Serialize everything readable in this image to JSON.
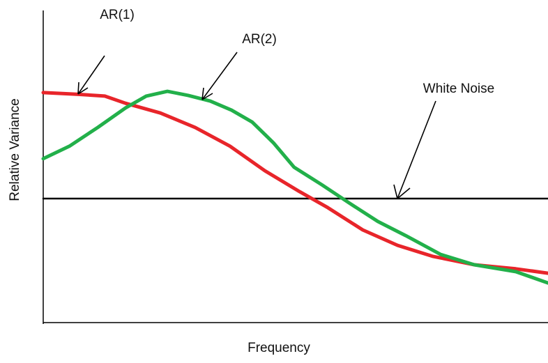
{
  "chart_data": {
    "type": "line",
    "x_label": "Frequency",
    "y_label": "Relative Variance",
    "xlim": [
      0,
      100
    ],
    "ylim": [
      0,
      100
    ],
    "series": [
      {
        "name": "AR(1)",
        "color": "#e8252a",
        "x": [
          0,
          6.6,
          12.2,
          16.3,
          23.2,
          30.1,
          37.0,
          43.9,
          50.8,
          56.4,
          63.3,
          70.2,
          77.1,
          85.4,
          93.6,
          100
        ],
        "values": [
          73.8,
          73.3,
          72.7,
          70.4,
          67.3,
          62.7,
          56.7,
          48.9,
          42.2,
          37.1,
          30.0,
          25.1,
          21.6,
          18.9,
          17.6,
          16.2
        ]
      },
      {
        "name": "AR(2)",
        "color": "#22b04a",
        "x": [
          0,
          5.2,
          10.8,
          16.3,
          20.4,
          24.6,
          28.7,
          33.1,
          37.3,
          41.4,
          45.6,
          49.7,
          55.2,
          60.8,
          66.3,
          71.8,
          78.7,
          85.4,
          93.6,
          100
        ],
        "values": [
          52.7,
          56.7,
          62.7,
          68.9,
          72.7,
          74.2,
          72.9,
          71.1,
          68.2,
          64.4,
          57.8,
          50.0,
          44.4,
          38.4,
          32.7,
          28.2,
          22.2,
          18.9,
          16.7,
          13.1
        ]
      },
      {
        "name": "White Noise",
        "color": "#000000",
        "x": [
          0,
          100
        ],
        "values": [
          40.0,
          40.0
        ]
      }
    ]
  }
}
